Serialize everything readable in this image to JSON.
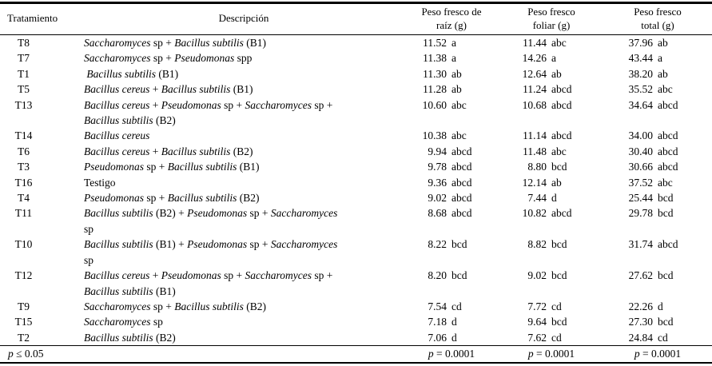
{
  "table": {
    "headers": {
      "treatment": "Tratamiento",
      "description": "Descripción",
      "root_fresh_weight": [
        "Peso fresco de",
        "raíz (g)"
      ],
      "foliar_fresh_weight": [
        "Peso fresco",
        "foliar (g)"
      ],
      "total_fresh_weight": [
        "Peso fresco",
        "total (g)"
      ]
    },
    "rows": [
      {
        "treatment": "T8",
        "description": [
          {
            "t": "Saccharomyces",
            "i": true
          },
          {
            "t": " sp + "
          },
          {
            "t": "Bacillus subtilis",
            "i": true
          },
          {
            "t": " (B1)"
          }
        ],
        "root": {
          "value": "11.52",
          "group": "a"
        },
        "foliar": {
          "value": "11.44",
          "group": "abc"
        },
        "total": {
          "value": "37.96",
          "group": "ab"
        }
      },
      {
        "treatment": "T7",
        "description": [
          {
            "t": "Saccharomyces",
            "i": true
          },
          {
            "t": " sp + "
          },
          {
            "t": "Pseudomonas",
            "i": true
          },
          {
            "t": " spp"
          }
        ],
        "root": {
          "value": "11.38",
          "group": "a"
        },
        "foliar": {
          "value": "14.26",
          "group": "a"
        },
        "total": {
          "value": "43.44",
          "group": "a"
        }
      },
      {
        "treatment": "T1",
        "description": [
          {
            "t": " "
          },
          {
            "t": "Bacillus subtilis",
            "i": true
          },
          {
            "t": " (B1)"
          }
        ],
        "root": {
          "value": "11.30",
          "group": "ab"
        },
        "foliar": {
          "value": "12.64",
          "group": "ab"
        },
        "total": {
          "value": "38.20",
          "group": "ab"
        }
      },
      {
        "treatment": "T5",
        "description": [
          {
            "t": "Bacillus cereus",
            "i": true
          },
          {
            "t": " + "
          },
          {
            "t": "Bacillus subtilis",
            "i": true
          },
          {
            "t": " (B1)"
          }
        ],
        "root": {
          "value": "11.28",
          "group": "ab"
        },
        "foliar": {
          "value": "11.24",
          "group": "abcd"
        },
        "total": {
          "value": "35.52",
          "group": "abc"
        }
      },
      {
        "treatment": "T13",
        "description": [
          {
            "t": "Bacillus cereus",
            "i": true
          },
          {
            "t": " + "
          },
          {
            "t": "Pseudomonas",
            "i": true
          },
          {
            "t": " sp + "
          },
          {
            "t": "Saccharomyces",
            "i": true
          },
          {
            "t": " sp +"
          },
          {
            "br": true
          },
          {
            "t": "Bacillus subtilis",
            "i": true
          },
          {
            "t": " (B2)"
          }
        ],
        "root": {
          "value": "10.60",
          "group": "abc"
        },
        "foliar": {
          "value": "10.68",
          "group": "abcd"
        },
        "total": {
          "value": "34.64",
          "group": "abcd"
        }
      },
      {
        "treatment": "T14",
        "description": [
          {
            "t": "Bacillus cereus",
            "i": true
          }
        ],
        "root": {
          "value": "10.38",
          "group": "abc"
        },
        "foliar": {
          "value": "11.14",
          "group": "abcd"
        },
        "total": {
          "value": "34.00",
          "group": "abcd"
        }
      },
      {
        "treatment": "T6",
        "description": [
          {
            "t": "Bacillus cereus",
            "i": true
          },
          {
            "t": " + "
          },
          {
            "t": "Bacillus subtilis",
            "i": true
          },
          {
            "t": " (B2)"
          }
        ],
        "root": {
          "value": "9.94",
          "group": "abcd"
        },
        "foliar": {
          "value": "11.48",
          "group": "abc"
        },
        "total": {
          "value": "30.40",
          "group": "abcd"
        }
      },
      {
        "treatment": "T3",
        "description": [
          {
            "t": "Pseudomonas",
            "i": true
          },
          {
            "t": " sp + "
          },
          {
            "t": "Bacillus subtilis",
            "i": true
          },
          {
            "t": " (B1)"
          }
        ],
        "root": {
          "value": "9.78",
          "group": "abcd"
        },
        "foliar": {
          "value": "8.80",
          "group": "bcd"
        },
        "total": {
          "value": "30.66",
          "group": "abcd"
        }
      },
      {
        "treatment": "T16",
        "description": [
          {
            "t": "Testigo"
          }
        ],
        "root": {
          "value": "9.36",
          "group": "abcd"
        },
        "foliar": {
          "value": "12.14",
          "group": "ab"
        },
        "total": {
          "value": "37.52",
          "group": "abc"
        }
      },
      {
        "treatment": "T4",
        "description": [
          {
            "t": "Pseudomonas",
            "i": true
          },
          {
            "t": " sp + "
          },
          {
            "t": "Bacillus subtilis",
            "i": true
          },
          {
            "t": " (B2)"
          }
        ],
        "root": {
          "value": "9.02",
          "group": "abcd"
        },
        "foliar": {
          "value": "7.44",
          "group": "d"
        },
        "total": {
          "value": "25.44",
          "group": "bcd"
        }
      },
      {
        "treatment": "T11",
        "description": [
          {
            "t": "Bacillus subtilis",
            "i": true
          },
          {
            "t": " (B2) + "
          },
          {
            "t": "Pseudomonas",
            "i": true
          },
          {
            "t": " sp + "
          },
          {
            "t": "Saccharomyces",
            "i": true
          },
          {
            "br": true
          },
          {
            "t": "sp"
          }
        ],
        "root": {
          "value": "8.68",
          "group": "abcd"
        },
        "foliar": {
          "value": "10.82",
          "group": "abcd"
        },
        "total": {
          "value": "29.78",
          "group": "bcd"
        }
      },
      {
        "treatment": "T10",
        "description": [
          {
            "t": "Bacillus subtilis",
            "i": true
          },
          {
            "t": " (B1) + "
          },
          {
            "t": "Pseudomonas",
            "i": true
          },
          {
            "t": " sp + "
          },
          {
            "t": "Saccharomyces",
            "i": true
          },
          {
            "br": true
          },
          {
            "t": "sp"
          }
        ],
        "root": {
          "value": "8.22",
          "group": "bcd"
        },
        "foliar": {
          "value": "8.82",
          "group": "bcd"
        },
        "total": {
          "value": "31.74",
          "group": "abcd"
        }
      },
      {
        "treatment": "T12",
        "description": [
          {
            "t": "Bacillus cereus",
            "i": true
          },
          {
            "t": " + "
          },
          {
            "t": "Pseudomonas",
            "i": true
          },
          {
            "t": " sp + "
          },
          {
            "t": "Saccharomyces",
            "i": true
          },
          {
            "t": " sp +"
          },
          {
            "br": true
          },
          {
            "t": "Bacillus subtilis",
            "i": true
          },
          {
            "t": " (B1)"
          }
        ],
        "root": {
          "value": "8.20",
          "group": "bcd"
        },
        "foliar": {
          "value": "9.02",
          "group": "bcd"
        },
        "total": {
          "value": "27.62",
          "group": "bcd"
        }
      },
      {
        "treatment": "T9",
        "description": [
          {
            "t": "Saccharomyces",
            "i": true
          },
          {
            "t": " sp + "
          },
          {
            "t": "Bacillus subtilis",
            "i": true
          },
          {
            "t": " (B2)"
          }
        ],
        "root": {
          "value": "7.54",
          "group": "cd"
        },
        "foliar": {
          "value": "7.72",
          "group": "cd"
        },
        "total": {
          "value": "22.26",
          "group": "d"
        }
      },
      {
        "treatment": "T15",
        "description": [
          {
            "t": "Saccharomyces",
            "i": true
          },
          {
            "t": " sp"
          }
        ],
        "root": {
          "value": "7.18",
          "group": "d"
        },
        "foliar": {
          "value": "9.64",
          "group": "bcd"
        },
        "total": {
          "value": "27.30",
          "group": "bcd"
        }
      },
      {
        "treatment": "T2",
        "description": [
          {
            "t": "Bacillus subtilis",
            "i": true
          },
          {
            "t": " (B2)"
          }
        ],
        "root": {
          "value": "7.06",
          "group": "d"
        },
        "foliar": {
          "value": "7.62",
          "group": "cd"
        },
        "total": {
          "value": "24.84",
          "group": "cd"
        }
      }
    ],
    "footer": {
      "label_parts": [
        {
          "t": "p",
          "i": true
        },
        {
          "t": " ≤ 0.05"
        }
      ],
      "p_values": [
        [
          {
            "t": "p",
            "i": true
          },
          {
            "t": " = 0.0001"
          }
        ],
        [
          {
            "t": "p",
            "i": true
          },
          {
            "t": " = 0.0001"
          }
        ],
        [
          {
            "t": "p",
            "i": true
          },
          {
            "t": " = 0.0001"
          }
        ]
      ]
    }
  }
}
